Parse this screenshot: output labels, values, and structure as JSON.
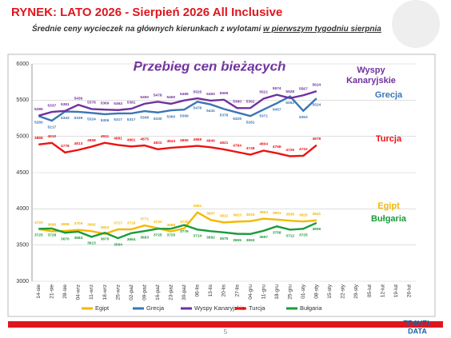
{
  "header": {
    "title": "RYNEK: LATO 2026 - Sierpień 2026 All Inclusive",
    "subtitle": "Średnie ceny wycieczek na głównych kierunkach z wylotami",
    "subtitle_underlined": "w pierwszym tygodniu sierpnia"
  },
  "chart_data": {
    "type": "line",
    "title": "Przebieg cen bieżących",
    "categories": [
      "14-sie",
      "21-sie",
      "28-sie",
      "04-wrz",
      "11-wrz",
      "18-wrz",
      "25-wrz",
      "02-paź",
      "09-paź",
      "16-paź",
      "23-paź",
      "30-paź",
      "06-lis",
      "13-lis",
      "20-lis",
      "27-lis",
      "04-gru",
      "11-gru",
      "18-gru",
      "25-gru",
      "01-sty",
      "08-sty",
      "15-sty",
      "22-sty",
      "29-sty",
      "05-lut",
      "12-lut",
      "19-lut",
      "26-lut"
    ],
    "series": [
      {
        "name": "Egipt",
        "color": "#f5b800",
        "values": [
          3720,
          3690,
          3696,
          3709,
          3692,
          3653,
          3717,
          3716,
          3771,
          3733,
          3688,
          3730,
          3951,
          3847,
          3812,
          3823,
          3830,
          3864,
          3851,
          3836,
          3825,
          3841,
          null,
          null,
          null,
          null,
          null,
          null,
          null
        ]
      },
      {
        "name": "Grecja",
        "color": "#3a76b5",
        "values": [
          5280,
          5217,
          5343,
          5339,
          5324,
          5306,
          5317,
          5317,
          5348,
          5330,
          5360,
          5369,
          5478,
          5441,
          5378,
          5329,
          5281,
          5371,
          5457,
          5552,
          5353,
          5524,
          null,
          null,
          null,
          null,
          null,
          null,
          null
        ]
      },
      {
        "name": "Wyspy Kanaryjskie",
        "color": "#7030a0",
        "values": [
          5285,
          5337,
          5351,
          5436,
          5378,
          5369,
          5363,
          5381,
          5450,
          5478,
          5450,
          5496,
          5525,
          5493,
          5506,
          5390,
          5391,
          5521,
          5574,
          5528,
          5567,
          5624,
          null,
          null,
          null,
          null,
          null,
          null,
          null
        ]
      },
      {
        "name": "Turcja",
        "color": "#ee1111",
        "values": [
          4888,
          4910,
          4778,
          4813,
          4858,
          4911,
          4881,
          4861,
          4875,
          4822,
          4843,
          4855,
          4869,
          4849,
          4821,
          4784,
          4748,
          4804,
          4768,
          4726,
          4732,
          4878,
          null,
          null,
          null,
          null,
          null,
          null,
          null
        ]
      },
      {
        "name": "Bułgaria",
        "color": "#1a9b3a",
        "values": [
          3725,
          3728,
          3670,
          3684,
          3613,
          3670,
          3594,
          3664,
          3693,
          3725,
          3725,
          3776,
          3714,
          3692,
          3675,
          3655,
          3653,
          3697,
          3758,
          3712,
          3725,
          3806,
          null,
          null,
          null,
          null,
          null,
          null,
          null
        ]
      }
    ],
    "ylim": [
      3000,
      6000
    ],
    "yticks": [
      3000,
      3500,
      4000,
      4500,
      5000,
      5500,
      6000
    ],
    "grid": true
  },
  "footer": {
    "page": "5",
    "logo_top": "TRAVEL",
    "logo_bottom": "DATA"
  }
}
